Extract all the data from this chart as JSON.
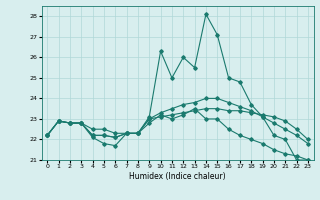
{
  "xlabel": "Humidex (Indice chaleur)",
  "background_color": "#d8eeee",
  "line_color": "#1a7a6e",
  "grid_color": "#b0d8d8",
  "xlim": [
    -0.5,
    23.5
  ],
  "ylim": [
    21.0,
    28.5
  ],
  "yticks": [
    21,
    22,
    23,
    24,
    25,
    26,
    27,
    28
  ],
  "xticks": [
    0,
    1,
    2,
    3,
    4,
    5,
    6,
    7,
    8,
    9,
    10,
    11,
    12,
    13,
    14,
    15,
    16,
    17,
    18,
    19,
    20,
    21,
    22,
    23
  ],
  "x": [
    0,
    1,
    2,
    3,
    4,
    5,
    6,
    7,
    8,
    9,
    10,
    11,
    12,
    13,
    14,
    15,
    16,
    17,
    18,
    19,
    20,
    21,
    22,
    23
  ],
  "series": [
    [
      22.2,
      22.9,
      22.8,
      22.8,
      22.1,
      21.8,
      21.7,
      22.3,
      22.3,
      23.1,
      26.3,
      25.0,
      26.0,
      25.5,
      28.1,
      27.1,
      25.0,
      24.8,
      23.7,
      23.1,
      22.2,
      22.0,
      21.0,
      21.0
    ],
    [
      22.2,
      22.9,
      22.8,
      22.8,
      22.2,
      22.2,
      22.1,
      22.3,
      22.3,
      23.0,
      23.1,
      23.2,
      23.3,
      23.4,
      23.5,
      23.5,
      23.4,
      23.4,
      23.3,
      23.2,
      23.1,
      22.9,
      22.5,
      22.0
    ],
    [
      22.2,
      22.9,
      22.8,
      22.8,
      22.2,
      22.2,
      22.1,
      22.3,
      22.3,
      23.0,
      23.3,
      23.5,
      23.7,
      23.8,
      24.0,
      24.0,
      23.8,
      23.6,
      23.4,
      23.1,
      22.8,
      22.5,
      22.2,
      21.8
    ],
    [
      22.2,
      22.9,
      22.8,
      22.8,
      22.5,
      22.5,
      22.3,
      22.3,
      22.3,
      22.8,
      23.2,
      23.0,
      23.2,
      23.5,
      23.0,
      23.0,
      22.5,
      22.2,
      22.0,
      21.8,
      21.5,
      21.3,
      21.2,
      21.0
    ]
  ]
}
